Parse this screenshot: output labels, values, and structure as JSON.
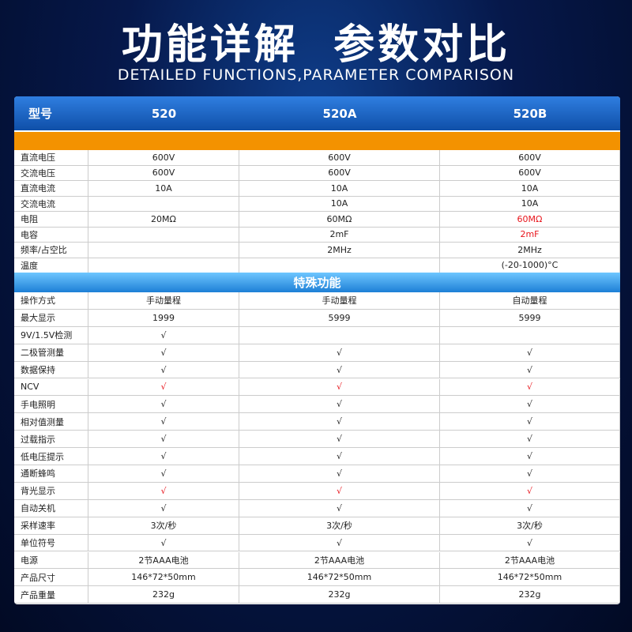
{
  "header": {
    "title": "功能详解  参数对比",
    "subtitle": "DETAILED FUNCTIONS,PARAMETER COMPARISON"
  },
  "table": {
    "columns": [
      "型号",
      "520",
      "520A",
      "520B"
    ],
    "sections": [
      {
        "title": null,
        "rows": [
          {
            "label": "直流电压",
            "cells": [
              "600V",
              "600V",
              "600V"
            ]
          },
          {
            "label": "交流电压",
            "cells": [
              "600V",
              "600V",
              "600V"
            ]
          },
          {
            "label": "直流电流",
            "cells": [
              "10A",
              "10A",
              "10A"
            ]
          },
          {
            "label": "交流电流",
            "cells": [
              null,
              "10A",
              "10A"
            ]
          },
          {
            "label": "电阻",
            "cells": [
              "20MΩ",
              "60MΩ",
              {
                "text": "60MΩ",
                "color": "#e8141b"
              }
            ]
          },
          {
            "label": "电容",
            "cells": [
              null,
              "2mF",
              {
                "text": "2mF",
                "color": "#e8141b"
              }
            ]
          },
          {
            "label": "频率/占空比",
            "cells": [
              null,
              "2MHz",
              "2MHz"
            ]
          },
          {
            "label": "温度",
            "cells": [
              null,
              null,
              "(-20-1000)°C"
            ]
          }
        ]
      },
      {
        "title": "特殊功能",
        "rows": [
          {
            "label": "操作方式",
            "cells": [
              "手动量程",
              "手动量程",
              "自动量程"
            ]
          },
          {
            "label": "最大显示",
            "cells": [
              "1999",
              "5999",
              "5999"
            ]
          },
          {
            "label": "9V/1.5V检测",
            "cells": [
              "√",
              null,
              null
            ]
          },
          {
            "label": "二极管测量",
            "cells": [
              "√",
              "√",
              "√"
            ]
          },
          {
            "label": "数据保持",
            "cells": [
              "√",
              "√",
              "√"
            ]
          },
          {
            "label": "NCV",
            "cells": [
              {
                "text": "√",
                "color": "#e8141b"
              },
              {
                "text": "√",
                "color": "#e8141b"
              },
              {
                "text": "√",
                "color": "#e8141b"
              }
            ]
          },
          {
            "label": "手电照明",
            "cells": [
              "√",
              "√",
              "√"
            ]
          },
          {
            "label": "相对值测量",
            "cells": [
              "√",
              "√",
              "√"
            ]
          },
          {
            "label": "过载指示",
            "cells": [
              "√",
              "√",
              "√"
            ]
          },
          {
            "label": "低电压提示",
            "cells": [
              "√",
              "√",
              "√"
            ]
          },
          {
            "label": "通断蜂鸣",
            "cells": [
              "√",
              "√",
              "√"
            ]
          },
          {
            "label": "背光显示",
            "cells": [
              {
                "text": "√",
                "color": "#e8141b"
              },
              {
                "text": "√",
                "color": "#e8141b"
              },
              {
                "text": "√",
                "color": "#e8141b"
              }
            ]
          },
          {
            "label": "自动关机",
            "cells": [
              "√",
              "√",
              "√"
            ]
          },
          {
            "label": "采样速率",
            "cells": [
              "3次/秒",
              "3次/秒",
              "3次/秒"
            ]
          },
          {
            "label": "单位符号",
            "cells": [
              "√",
              "√",
              "√"
            ]
          },
          {
            "label": "电源",
            "cells": [
              "2节AAA电池",
              "2节AAA电池",
              "2节AAA电池"
            ]
          },
          {
            "label": "产品尺寸",
            "cells": [
              "146*72*50mm",
              "146*72*50mm",
              "146*72*50mm"
            ]
          },
          {
            "label": "产品重量",
            "cells": [
              "232g",
              "232g",
              "232g"
            ]
          }
        ]
      }
    ]
  }
}
